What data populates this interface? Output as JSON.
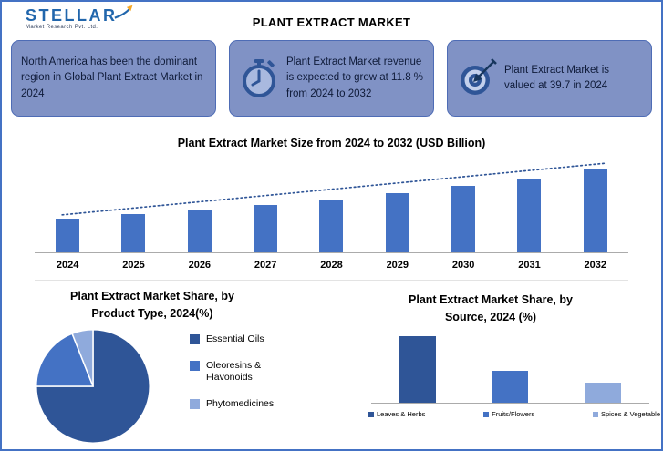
{
  "header": {
    "logo": {
      "name": "STELLAR",
      "tagline": "Market Research Pvt. Ltd."
    },
    "title": "PLANT EXTRACT MARKET"
  },
  "callouts": [
    {
      "icon": "",
      "text": "North America has been the dominant region in Global Plant Extract Market in 2024"
    },
    {
      "icon": "stopwatch-icon",
      "text": "Plant Extract Market revenue is expected to grow at 11.8 % from 2024 to 2032"
    },
    {
      "icon": "target-dart-icon",
      "text": "Plant Extract Market is valued at 39.7 in 2024"
    }
  ],
  "colors": {
    "accent": "#4472C4",
    "box_fill": "#8092C5",
    "box_border": "#4E6CB5",
    "dark_blue": "#2F5597",
    "light_blue": "#8FAADC",
    "trend": "#2F5597"
  },
  "chart_data": [
    {
      "type": "bar",
      "title": "Plant Extract  Market Size from 2024 to 2032 (USD Billion)",
      "categories": [
        "2024",
        "2025",
        "2026",
        "2027",
        "2028",
        "2029",
        "2030",
        "2031",
        "2032"
      ],
      "values": [
        39.7,
        44.4,
        49.6,
        55.5,
        62.0,
        69.3,
        77.5,
        86.7,
        96.9
      ],
      "ylim": [
        0,
        110
      ],
      "xlabel": "",
      "ylabel": "",
      "bar_color": "#4472C4",
      "trendline": true,
      "grid": false,
      "legend_position": "none"
    },
    {
      "type": "pie",
      "title": "Plant Extract Market Share, by Product Type, 2024(%)",
      "labels": [
        "Essential Oils",
        "Oleoresins & Flavonoids",
        "Phytomedicines"
      ],
      "values": [
        75,
        19,
        6
      ],
      "colors": [
        "#2F5597",
        "#4472C4",
        "#8FAADC"
      ],
      "legend_position": "right"
    },
    {
      "type": "bar",
      "title": "Plant Extract  Market Share, by Source, 2024 (%)",
      "categories": [
        "Leaves & Herbs",
        "Fruits/Flowers",
        "Spices & Vegetable"
      ],
      "values": [
        56,
        27,
        17
      ],
      "ylim": [
        0,
        58
      ],
      "colors": [
        "#2F5597",
        "#4472C4",
        "#8FAADC"
      ],
      "grid": false,
      "legend_position": "bottom"
    }
  ]
}
